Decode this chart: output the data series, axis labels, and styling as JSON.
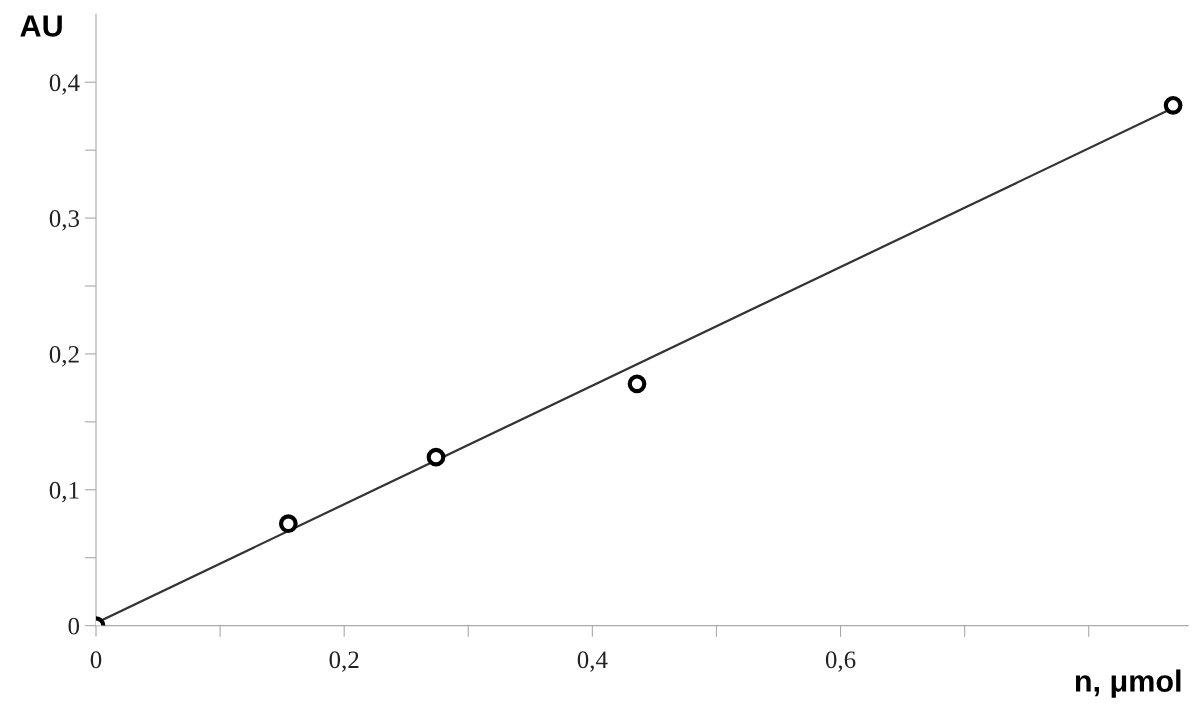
{
  "chart_data": {
    "type": "scatter",
    "xlabel": "n, μmol",
    "ylabel": "AU",
    "xlim": [
      0,
      0.88
    ],
    "ylim": [
      0,
      0.45
    ],
    "xticks": [
      0,
      {
        "value": 0.1,
        "label": null
      },
      {
        "value": 0.2,
        "label": "0,2"
      },
      {
        "value": 0.3,
        "label": null
      },
      {
        "value": 0.4,
        "label": "0,4"
      },
      {
        "value": 0.5,
        "label": null
      },
      {
        "value": 0.6,
        "label": "0,6"
      },
      {
        "value": 0.7,
        "label": null
      },
      {
        "value": 0.8,
        "label": null
      }
    ],
    "yticks": [
      0,
      {
        "value": 0.05,
        "label": null
      },
      {
        "value": 0.1,
        "label": "0,1"
      },
      {
        "value": 0.15,
        "label": null
      },
      {
        "value": 0.2,
        "label": "0,2"
      },
      {
        "value": 0.25,
        "label": null
      },
      {
        "value": 0.3,
        "label": "0,3"
      },
      {
        "value": 0.35,
        "label": null
      },
      {
        "value": 0.4,
        "label": "0,4"
      }
    ],
    "grid": false,
    "legend": false,
    "series": [
      {
        "type": "line",
        "color": "#333333",
        "x": [
          0,
          0.868
        ],
        "values": [
          0.002,
          0.381
        ],
        "marker": "none",
        "line_style": "solid"
      },
      {
        "color": "#000000",
        "x": [
          0,
          0.155,
          0.274,
          0.436,
          0.868
        ],
        "values": [
          0,
          0.075,
          0.124,
          0.178,
          0.383
        ],
        "marker": "circle"
      }
    ]
  }
}
